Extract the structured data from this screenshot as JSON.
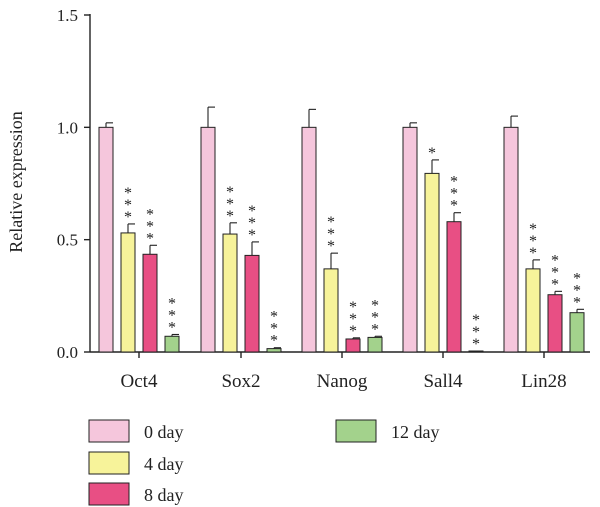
{
  "chart_data": {
    "type": "bar",
    "ylabel": "Relative expression",
    "ylim": [
      0,
      1.5
    ],
    "yticks": [
      "0.0",
      "0.5",
      "1.0",
      "1.5"
    ],
    "categories": [
      "Oct4",
      "Sox2",
      "Nanog",
      "Sall4",
      "Lin28"
    ],
    "series": [
      {
        "name": "0 day",
        "color": "#f5c6dc",
        "values": [
          1.0,
          1.0,
          1.0,
          1.0,
          1.0
        ],
        "errors": [
          0.02,
          0.09,
          0.08,
          0.02,
          0.05
        ],
        "significance": [
          "",
          "",
          "",
          "",
          ""
        ]
      },
      {
        "name": "4 day",
        "color": "#f7f39a",
        "values": [
          0.53,
          0.525,
          0.37,
          0.795,
          0.37
        ],
        "errors": [
          0.04,
          0.05,
          0.07,
          0.06,
          0.04
        ],
        "significance": [
          "***",
          "***",
          "***",
          "*",
          "***"
        ]
      },
      {
        "name": "8 day",
        "color": "#e84f84",
        "values": [
          0.435,
          0.43,
          0.058,
          0.58,
          0.255
        ],
        "errors": [
          0.04,
          0.06,
          0.005,
          0.04,
          0.015
        ],
        "significance": [
          "***",
          "***",
          "***",
          "***",
          "***"
        ]
      },
      {
        "name": "12 day",
        "color": "#a3d28c",
        "values": [
          0.07,
          0.015,
          0.065,
          0.002,
          0.175
        ],
        "errors": [
          0.008,
          0.004,
          0.005,
          0.002,
          0.015
        ],
        "significance": [
          "***",
          "***",
          "***",
          "***",
          "***"
        ]
      }
    ],
    "legend_position": "bottom"
  }
}
